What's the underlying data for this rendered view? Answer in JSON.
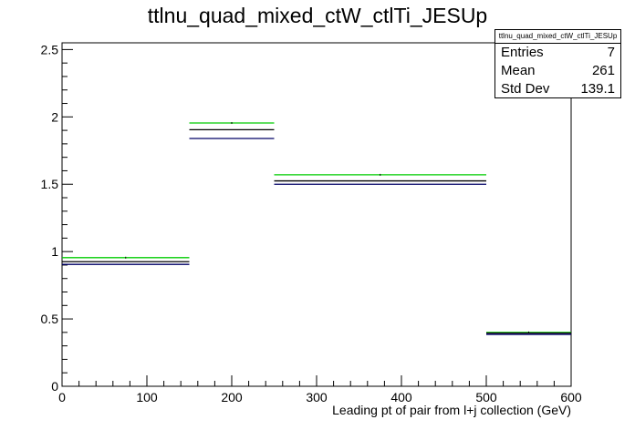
{
  "chart_data": {
    "type": "histogram",
    "title": "ttlnu_quad_mixed_ctW_ctlTi_JESUp",
    "xlabel": "Leading pt of pair from l+j collection (GeV)",
    "ylabel": "",
    "xlim": [
      0,
      600
    ],
    "ylim": [
      0,
      2.55
    ],
    "x_ticks": [
      "0",
      "100",
      "200",
      "300",
      "400",
      "500",
      "600"
    ],
    "y_ticks": [
      "0",
      "0.5",
      "1",
      "1.5",
      "2",
      "2.5"
    ],
    "bins": [
      [
        0,
        150
      ],
      [
        150,
        250
      ],
      [
        250,
        500
      ],
      [
        500,
        600
      ]
    ],
    "series": [
      {
        "color": "#00cc00",
        "values": [
          0.955,
          1.955,
          1.57,
          0.4
        ]
      },
      {
        "color": "#000000",
        "values": [
          0.925,
          1.905,
          1.525,
          0.395
        ]
      },
      {
        "color": "#000066",
        "values": [
          0.905,
          1.84,
          1.5,
          0.385
        ]
      }
    ],
    "grid": false,
    "legend": "none"
  },
  "stats": {
    "name": "ttlnu_quad_mixed_ctW_ctlTi_JESUp",
    "entries_label": "Entries",
    "entries_value": "7",
    "mean_label": "Mean",
    "mean_value": "261",
    "stddev_label": "Std Dev",
    "stddev_value": "139.1"
  }
}
